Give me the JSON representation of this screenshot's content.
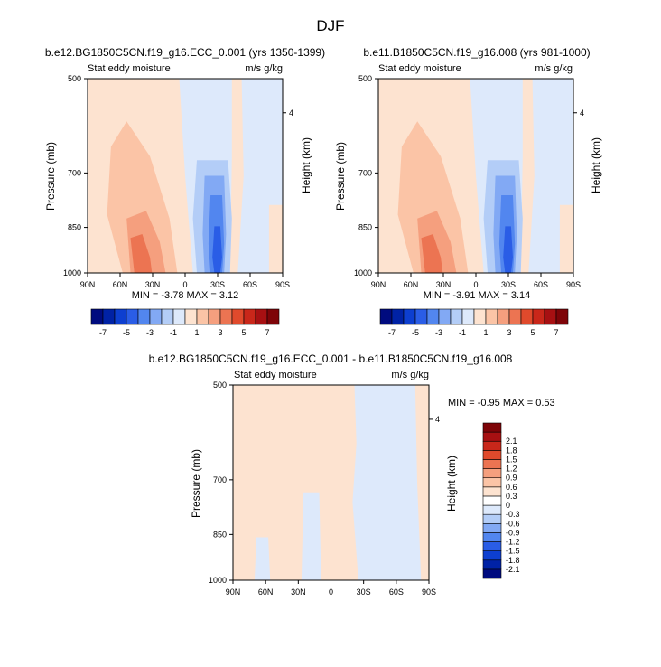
{
  "figure": {
    "title": "DJF"
  },
  "chart_data": [
    {
      "type": "heatmap",
      "title": "b.e12.BG1850C5CN.f19_g16.ECC_0.001 (yrs 1350-1399)",
      "left_label": "Stat eddy moisture",
      "right_label": "m/s g/kg",
      "xlabel": "",
      "ylabel": "Pressure (mb)",
      "ylabel_right": "Height (km)",
      "x_ticks": [
        "90N",
        "60N",
        "30N",
        "0",
        "30S",
        "60S",
        "90S"
      ],
      "y_ticks": [
        "500",
        "700",
        "850",
        "1000"
      ],
      "y_right_ticks": [
        "4"
      ],
      "min_max": "MIN = -3.78 MAX = 3.12",
      "variant": "a"
    },
    {
      "type": "heatmap",
      "title": "b.e11.B1850C5CN.f19_g16.008 (yrs 981-1000)",
      "left_label": "Stat eddy moisture",
      "right_label": "m/s g/kg",
      "xlabel": "",
      "ylabel": "Pressure (mb)",
      "ylabel_right": "Height (km)",
      "x_ticks": [
        "90N",
        "60N",
        "30N",
        "0",
        "30S",
        "60S",
        "90S"
      ],
      "y_ticks": [
        "500",
        "700",
        "850",
        "1000"
      ],
      "y_right_ticks": [
        "4"
      ],
      "min_max": "MIN = -3.91 MAX = 3.14",
      "variant": "b"
    },
    {
      "type": "heatmap",
      "title": "b.e12.BG1850C5CN.f19_g16.ECC_0.001 - b.e11.B1850C5CN.f19_g16.008",
      "left_label": "Stat eddy moisture",
      "right_label": "m/s g/kg",
      "xlabel": "",
      "ylabel": "Pressure (mb)",
      "ylabel_right": "Height (km)",
      "x_ticks": [
        "90N",
        "60N",
        "30N",
        "0",
        "30S",
        "60S",
        "90S"
      ],
      "y_ticks": [
        "500",
        "700",
        "850",
        "1000"
      ],
      "y_right_ticks": [
        "4"
      ],
      "min_max": "MIN = -0.95 MAX = 0.53",
      "variant": "diff"
    }
  ],
  "colorbars": {
    "top": {
      "colors": [
        "#000b7f",
        "#0022a5",
        "#0d3fd0",
        "#2a5de6",
        "#5286ef",
        "#82a9f4",
        "#b3cdf7",
        "#dde9fb",
        "#fde3d0",
        "#fbc4a6",
        "#f59f7e",
        "#ec7452",
        "#e04a2c",
        "#c9271a",
        "#a71012",
        "#7e0408"
      ],
      "labels": [
        "-7",
        "-5",
        "-3",
        "-1",
        "1",
        "3",
        "5",
        "7"
      ]
    },
    "diff": {
      "colors": [
        "#000b7f",
        "#0022a5",
        "#0d3fd0",
        "#2a5de6",
        "#5286ef",
        "#82a9f4",
        "#b3cdf7",
        "#dde9fb",
        "#ffffff",
        "#fde3d0",
        "#fbc4a6",
        "#f59f7e",
        "#ec7452",
        "#e04a2c",
        "#c9271a",
        "#a71012",
        "#7e0408"
      ],
      "labels": [
        "-2.1",
        "-1.8",
        "-1.5",
        "-1.2",
        "-0.9",
        "-0.6",
        "-0.3",
        "0",
        "0.3",
        "0.6",
        "0.9",
        "1.2",
        "1.5",
        "1.8",
        "2.1"
      ]
    }
  }
}
